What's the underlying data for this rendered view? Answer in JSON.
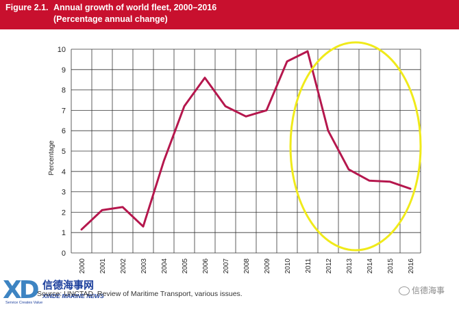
{
  "header": {
    "figure_label": "Figure 2.1.",
    "title": "Annual growth of world fleet, 2000–2016",
    "subtitle": "(Percentage annual change)"
  },
  "chart_data": {
    "type": "line",
    "title": "Annual growth of world fleet, 2000–2016",
    "subtitle": "(Percentage annual change)",
    "xlabel": "",
    "ylabel": "Percentage",
    "x": [
      "2000",
      "2001",
      "2002",
      "2003",
      "2004",
      "2005",
      "2006",
      "2007",
      "2008",
      "2009",
      "2010",
      "2011",
      "2012",
      "2013",
      "2014",
      "2015",
      "2016"
    ],
    "series": [
      {
        "values": [
          1.15,
          2.1,
          2.25,
          1.3,
          4.5,
          7.2,
          8.6,
          7.2,
          6.7,
          7.0,
          9.4,
          9.9,
          6.0,
          4.1,
          3.55,
          3.5,
          3.15
        ]
      }
    ],
    "ylim": [
      0,
      10
    ],
    "yticks": [
      "0",
      "1",
      "2",
      "3",
      "4",
      "5",
      "6",
      "7",
      "8",
      "9",
      "10"
    ],
    "grid": true,
    "line_color": "#b5174d",
    "highlight_color": "#f0ea1a",
    "header_color": "#c8102e"
  },
  "source": "Source: UNCTAD, Review of Maritime Transport, various issues.",
  "logo": {
    "mark": "XD",
    "chinese_name": "信德海事网",
    "english_name": "XINDE MARINE NEWS",
    "tagline": "Service Creates Value"
  },
  "watermark": {
    "text": "信德海事"
  }
}
